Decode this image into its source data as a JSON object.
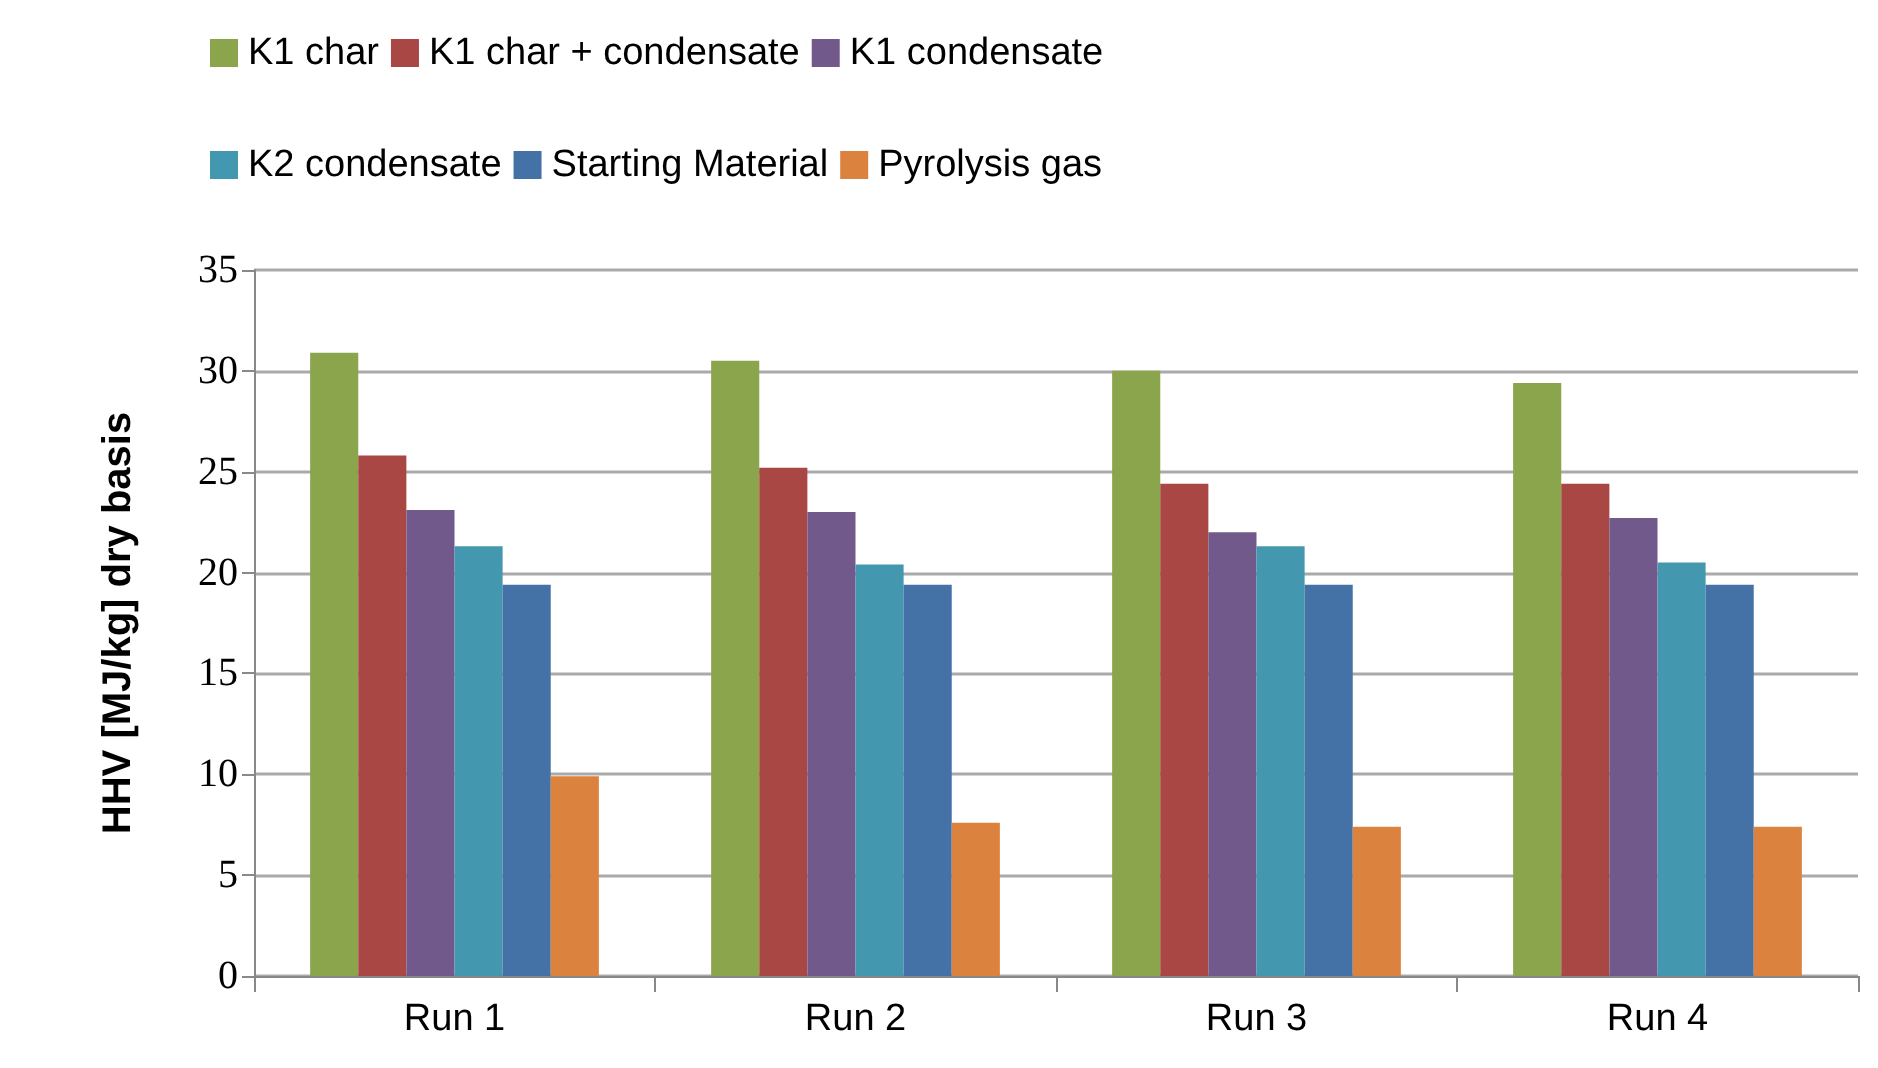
{
  "chart_data": {
    "type": "bar",
    "categories": [
      "Run 1",
      "Run 2",
      "Run 3",
      "Run 4"
    ],
    "ylabel": "HHV [MJ/kg] dry basis",
    "ylim": [
      0,
      35
    ],
    "yticks": [
      0,
      5,
      10,
      15,
      20,
      25,
      30,
      35
    ],
    "grid": "y",
    "legend": "top",
    "series": [
      {
        "name": "K1 char",
        "color": "#8ba54c",
        "values": [
          30.9,
          30.5,
          30.0,
          29.4
        ]
      },
      {
        "name": "K1 char + condensate",
        "color": "#a94744",
        "values": [
          25.8,
          25.2,
          24.4,
          24.4
        ]
      },
      {
        "name": "K1 condensate",
        "color": "#72598c",
        "values": [
          23.1,
          23.0,
          22.0,
          22.7
        ]
      },
      {
        "name": "K2 condensate",
        "color": "#4398af",
        "values": [
          21.3,
          20.4,
          21.3,
          20.5
        ]
      },
      {
        "name": "Starting Material",
        "color": "#4472a6",
        "values": [
          19.4,
          19.4,
          19.4,
          19.4
        ]
      },
      {
        "name": "Pyrolysis gas",
        "color": "#db823e",
        "values": [
          9.9,
          7.6,
          7.4,
          7.4
        ]
      }
    ]
  }
}
